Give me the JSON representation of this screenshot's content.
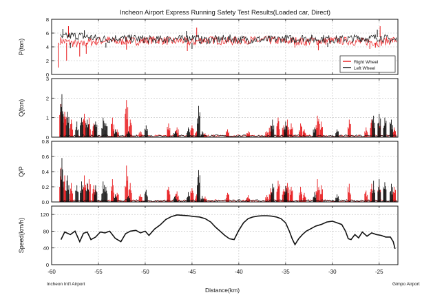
{
  "chart_data": {
    "title": "Incheon Airport Express Running Safety Test Results(Loaded car, Direct)",
    "xlabel": "Distance(km)",
    "x_ticks": [
      -60,
      -55,
      -50,
      -45,
      -40,
      -35,
      -30,
      -25
    ],
    "xlim": [
      -60,
      -23
    ],
    "x_start_label": "Incheon Int'l Airport",
    "x_end_label": "Gimpo Airport",
    "grid": true,
    "colors": {
      "right_wheel": "#e8191c",
      "left_wheel": "#111111",
      "speed": "#111111"
    },
    "panels": [
      {
        "id": "P",
        "type": "line",
        "ylabel": "P(ton)",
        "ylim": [
          0,
          8
        ],
        "y_ticks": [
          0,
          2,
          4,
          6,
          8
        ],
        "legend_position": "bottom-right",
        "series": [
          {
            "name": "Right Wheel",
            "color": "#e8191c",
            "x": [
              -59,
              -58,
              -57,
              -56,
              -55,
              -54,
              -53,
              -52,
              -51,
              -50,
              -49,
              -48,
              -47,
              -46,
              -45,
              -44,
              -43,
              -42,
              -41,
              -40,
              -39,
              -38,
              -37,
              -36,
              -35,
              -34,
              -33,
              -32,
              -31,
              -30,
              -29,
              -28,
              -27,
              -26,
              -25,
              -24,
              -23
            ],
            "values": [
              4.9,
              4.6,
              4.3,
              4.7,
              4.8,
              5.0,
              4.7,
              4.9,
              4.8,
              4.9,
              5.0,
              4.9,
              4.8,
              4.9,
              4.6,
              5.0,
              5.0,
              4.9,
              4.8,
              4.9,
              5.0,
              4.9,
              5.0,
              4.9,
              4.8,
              4.9,
              4.7,
              4.9,
              4.8,
              4.9,
              4.9,
              4.8,
              4.7,
              4.8,
              4.6,
              4.9,
              5.0
            ],
            "spikes_down": [
              [
                -59.3,
                1.0
              ],
              [
                -58.4,
                2.0
              ],
              [
                -57.0,
                2.6
              ],
              [
                -56.3,
                3.0
              ],
              [
                -52.0,
                3.6
              ],
              [
                -45.5,
                3.4
              ],
              [
                -34.0,
                3.9
              ],
              [
                -31.5,
                3.5
              ],
              [
                -26.0,
                3.7
              ],
              [
                -25.4,
                3.9
              ]
            ],
            "spikes_up": [
              [
                -58.2,
                7.0
              ],
              [
                -44.5,
                6.8
              ],
              [
                -24.9,
                7.0
              ]
            ]
          },
          {
            "name": "Left Wheel",
            "color": "#111111",
            "x": [
              -59,
              -58,
              -57,
              -56,
              -55,
              -54,
              -53,
              -52,
              -51,
              -50,
              -49,
              -48,
              -47,
              -46,
              -45,
              -44,
              -43,
              -42,
              -41,
              -40,
              -39,
              -38,
              -37,
              -36,
              -35,
              -34,
              -33,
              -32,
              -31,
              -30,
              -29,
              -28,
              -27,
              -26,
              -25,
              -24,
              -23
            ],
            "values": [
              5.3,
              5.6,
              5.6,
              5.4,
              5.2,
              5.1,
              5.3,
              5.2,
              5.2,
              5.1,
              5.0,
              5.1,
              5.2,
              5.1,
              5.4,
              5.0,
              5.0,
              5.1,
              5.2,
              5.1,
              5.0,
              5.1,
              5.0,
              5.1,
              5.2,
              5.1,
              5.3,
              5.1,
              5.2,
              5.1,
              5.1,
              5.2,
              5.3,
              5.2,
              5.4,
              5.1,
              5.0
            ],
            "spikes_down": [
              [
                -58.0,
                3.8
              ],
              [
                -54.2,
                3.9
              ],
              [
                -45.0,
                3.7
              ],
              [
                -30.5,
                4.0
              ]
            ],
            "spikes_up": [
              [
                -58.8,
                6.6
              ],
              [
                -56.5,
                6.4
              ],
              [
                -45.6,
                6.3
              ],
              [
                -25.2,
                6.5
              ]
            ]
          }
        ]
      },
      {
        "id": "Q",
        "type": "line",
        "ylabel": "Q(ton)",
        "ylim": [
          0,
          3
        ],
        "y_ticks": [
          0,
          1,
          2,
          3
        ],
        "series": [
          {
            "name": "Right Wheel",
            "color": "#e8191c",
            "spikes": [
              [
                -59.0,
                1.7
              ],
              [
                -58.6,
                1.3
              ],
              [
                -57.9,
                0.9
              ],
              [
                -56.5,
                1.2
              ],
              [
                -56.0,
                1.0
              ],
              [
                -55.5,
                0.7
              ],
              [
                -53.5,
                1.0
              ],
              [
                -53.0,
                0.4
              ],
              [
                -52.0,
                1.9
              ],
              [
                -51.6,
                0.9
              ],
              [
                -50.5,
                0.3
              ],
              [
                -47.5,
                0.7
              ],
              [
                -46.6,
                0.5
              ],
              [
                -45.0,
                0.6
              ],
              [
                -44.5,
                0.3
              ],
              [
                -43.6,
                0.2
              ],
              [
                -41.2,
                0.4
              ],
              [
                -39.0,
                0.3
              ],
              [
                -37.0,
                0.3
              ],
              [
                -36.6,
                0.6
              ],
              [
                -35.8,
                1.0
              ],
              [
                -35.2,
                0.6
              ],
              [
                -34.8,
                0.9
              ],
              [
                -34.4,
                0.7
              ],
              [
                -33.4,
                0.7
              ],
              [
                -33.0,
                0.4
              ],
              [
                -31.6,
                1.1
              ],
              [
                -31.2,
                0.8
              ],
              [
                -28.2,
                0.9
              ],
              [
                -26.4,
                0.5
              ],
              [
                -25.8,
                0.9
              ],
              [
                -25.0,
                0.8
              ],
              [
                -23.4,
                0.5
              ]
            ]
          },
          {
            "name": "Left Wheel",
            "color": "#111111",
            "spikes": [
              [
                -58.9,
                2.2
              ],
              [
                -58.3,
                1.3
              ],
              [
                -57.3,
                0.8
              ],
              [
                -56.8,
                1.0
              ],
              [
                -56.2,
                0.9
              ],
              [
                -55.3,
                0.8
              ],
              [
                -54.5,
                1.0
              ],
              [
                -54.2,
                0.7
              ],
              [
                -53.2,
                0.4
              ],
              [
                -51.8,
                0.3
              ],
              [
                -49.9,
                0.6
              ],
              [
                -46.8,
                0.3
              ],
              [
                -45.4,
                0.5
              ],
              [
                -44.3,
                1.6
              ],
              [
                -43.9,
                0.3
              ],
              [
                -36.4,
                0.9
              ],
              [
                -35.0,
                0.8
              ],
              [
                -31.9,
                0.5
              ],
              [
                -29.5,
                0.4
              ],
              [
                -25.6,
                1.1
              ],
              [
                -25.0,
                1.2
              ],
              [
                -24.4,
                1.0
              ],
              [
                -23.7,
                0.9
              ]
            ]
          }
        ]
      },
      {
        "id": "QP",
        "type": "line",
        "ylabel": "Q/P",
        "ylim": [
          0,
          0.8
        ],
        "y_ticks": [
          0.0,
          0.2,
          0.4,
          0.6,
          0.8
        ],
        "series": [
          {
            "name": "Right Wheel",
            "color": "#e8191c",
            "spikes": [
              [
                -59.0,
                0.45
              ],
              [
                -58.6,
                0.35
              ],
              [
                -57.9,
                0.25
              ],
              [
                -56.5,
                0.35
              ],
              [
                -56.0,
                0.3
              ],
              [
                -55.5,
                0.22
              ],
              [
                -53.5,
                0.3
              ],
              [
                -53.0,
                0.12
              ],
              [
                -52.0,
                0.48
              ],
              [
                -51.6,
                0.25
              ],
              [
                -50.5,
                0.1
              ],
              [
                -47.5,
                0.2
              ],
              [
                -46.6,
                0.14
              ],
              [
                -45.0,
                0.18
              ],
              [
                -44.5,
                0.1
              ],
              [
                -43.6,
                0.07
              ],
              [
                -41.2,
                0.12
              ],
              [
                -39.0,
                0.09
              ],
              [
                -37.0,
                0.09
              ],
              [
                -36.6,
                0.18
              ],
              [
                -35.8,
                0.28
              ],
              [
                -35.2,
                0.17
              ],
              [
                -34.8,
                0.25
              ],
              [
                -34.4,
                0.2
              ],
              [
                -33.4,
                0.2
              ],
              [
                -33.0,
                0.12
              ],
              [
                -31.6,
                0.3
              ],
              [
                -31.2,
                0.22
              ],
              [
                -28.2,
                0.24
              ],
              [
                -26.4,
                0.15
              ],
              [
                -25.8,
                0.24
              ],
              [
                -25.0,
                0.22
              ],
              [
                -23.4,
                0.2
              ]
            ]
          },
          {
            "name": "Left Wheel",
            "color": "#111111",
            "spikes": [
              [
                -58.9,
                0.58
              ],
              [
                -58.3,
                0.35
              ],
              [
                -57.3,
                0.22
              ],
              [
                -56.8,
                0.27
              ],
              [
                -56.2,
                0.25
              ],
              [
                -55.3,
                0.22
              ],
              [
                -54.5,
                0.27
              ],
              [
                -54.2,
                0.2
              ],
              [
                -53.2,
                0.1
              ],
              [
                -51.8,
                0.08
              ],
              [
                -49.9,
                0.16
              ],
              [
                -46.8,
                0.08
              ],
              [
                -45.4,
                0.13
              ],
              [
                -44.3,
                0.42
              ],
              [
                -43.9,
                0.08
              ],
              [
                -36.4,
                0.24
              ],
              [
                -35.0,
                0.21
              ],
              [
                -31.9,
                0.13
              ],
              [
                -29.5,
                0.1
              ],
              [
                -25.6,
                0.28
              ],
              [
                -25.0,
                0.3
              ],
              [
                -24.4,
                0.26
              ],
              [
                -23.7,
                0.24
              ]
            ]
          }
        ]
      },
      {
        "id": "Speed",
        "type": "line",
        "ylabel": "Speed(km/h)",
        "ylim": [
          0,
          140
        ],
        "y_ticks": [
          0,
          40,
          80,
          120
        ],
        "series": [
          {
            "name": "Speed",
            "color": "#111111",
            "x": [
              -59.0,
              -58.6,
              -58.0,
              -57.5,
              -57.0,
              -56.6,
              -56.2,
              -55.8,
              -55.3,
              -54.8,
              -54.3,
              -53.8,
              -53.2,
              -52.6,
              -52.1,
              -51.6,
              -51.0,
              -50.5,
              -50.0,
              -49.6,
              -49.0,
              -48.4,
              -47.8,
              -47.2,
              -46.6,
              -46.0,
              -45.4,
              -44.8,
              -44.2,
              -43.6,
              -43.0,
              -42.5,
              -42.0,
              -41.5,
              -41.0,
              -40.5,
              -40.0,
              -39.5,
              -39.0,
              -38.5,
              -38.0,
              -37.5,
              -37.0,
              -36.5,
              -36.0,
              -35.5,
              -35.0,
              -34.6,
              -34.3,
              -34.0,
              -33.6,
              -33.2,
              -32.8,
              -32.3,
              -31.8,
              -31.2,
              -30.6,
              -30.0,
              -29.5,
              -29.0,
              -28.6,
              -28.3,
              -28.0,
              -27.6,
              -27.2,
              -26.8,
              -26.3,
              -25.8,
              -25.3,
              -24.8,
              -24.3,
              -23.8,
              -23.5,
              -23.3
            ],
            "values": [
              60,
              78,
              72,
              80,
              55,
              75,
              78,
              60,
              66,
              78,
              76,
              80,
              63,
              55,
              74,
              80,
              82,
              76,
              80,
              70,
              85,
              95,
              108,
              115,
              119,
              118,
              117,
              115,
              114,
              110,
              102,
              90,
              80,
              70,
              62,
              60,
              82,
              100,
              110,
              114,
              116,
              117,
              117,
              116,
              114,
              110,
              100,
              80,
              62,
              48,
              62,
              72,
              80,
              86,
              92,
              96,
              102,
              104,
              100,
              96,
              80,
              62,
              60,
              72,
              64,
              78,
              68,
              76,
              72,
              70,
              66,
              66,
              55,
              38
            ]
          }
        ]
      }
    ]
  }
}
